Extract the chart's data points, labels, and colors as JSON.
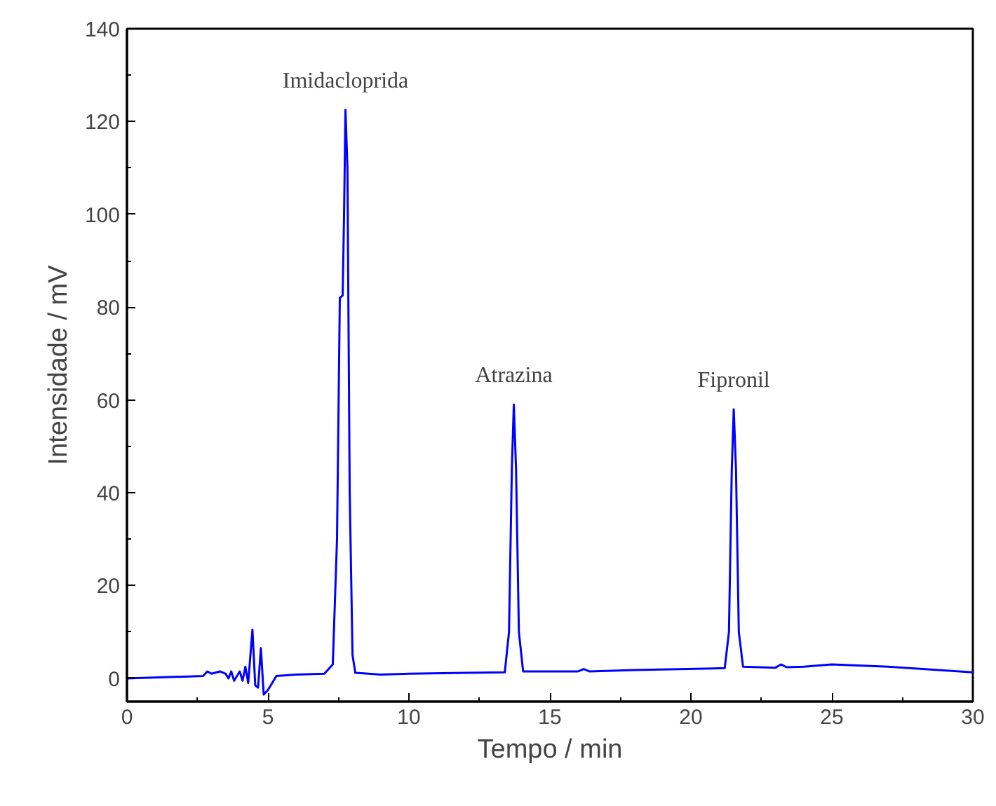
{
  "chart_data": {
    "type": "line",
    "xlabel": "Tempo / min",
    "ylabel": "Intensidade / mV",
    "xlim": [
      0,
      30
    ],
    "ylim": [
      -5,
      140
    ],
    "xticks": [
      0,
      5,
      10,
      15,
      20,
      25,
      30
    ],
    "yticks": [
      0,
      20,
      40,
      60,
      80,
      100,
      120,
      140
    ],
    "grid": false,
    "marker": "none",
    "line_style": "solid",
    "annotations": [
      {
        "text": "Imidacloprida",
        "x": 7.75,
        "y": 122.5
      },
      {
        "text": "Atrazina",
        "x": 13.72,
        "y": 59
      },
      {
        "text": "Fipronil",
        "x": 21.52,
        "y": 58
      }
    ],
    "series": [
      {
        "color": "#0000ff",
        "x": [
          0,
          2.7,
          2.85,
          3.0,
          3.3,
          3.5,
          3.6,
          3.7,
          3.8,
          4.0,
          4.1,
          4.2,
          4.3,
          4.45,
          4.55,
          4.65,
          4.75,
          4.85,
          5.0,
          5.3,
          6.0,
          7.0,
          7.3,
          7.45,
          7.55,
          7.65,
          7.7,
          7.75,
          7.82,
          7.9,
          8.0,
          8.1,
          9,
          10,
          12,
          13.4,
          13.55,
          13.65,
          13.72,
          13.8,
          13.9,
          14.05,
          16.0,
          16.2,
          16.4,
          18,
          21.2,
          21.35,
          21.45,
          21.52,
          21.6,
          21.7,
          21.85,
          23.0,
          23.2,
          23.4,
          24,
          25,
          27,
          30
        ],
        "values": [
          0,
          0.5,
          1.5,
          1.0,
          1.5,
          1.0,
          0,
          1.5,
          -0.5,
          1.5,
          -0.5,
          2.5,
          -1,
          10.5,
          -1.5,
          -2,
          6.5,
          -3.5,
          -2.5,
          0.5,
          0.8,
          1.0,
          3,
          30,
          82,
          82.5,
          100,
          122.5,
          110,
          40,
          5,
          1.2,
          0.8,
          1.0,
          1.2,
          1.3,
          10,
          45,
          59,
          45,
          10,
          1.5,
          1.5,
          2,
          1.5,
          1.8,
          2.2,
          10,
          45,
          58,
          45,
          10,
          2.5,
          2.3,
          3,
          2.4,
          2.5,
          3,
          2.5,
          1.3
        ]
      }
    ]
  }
}
